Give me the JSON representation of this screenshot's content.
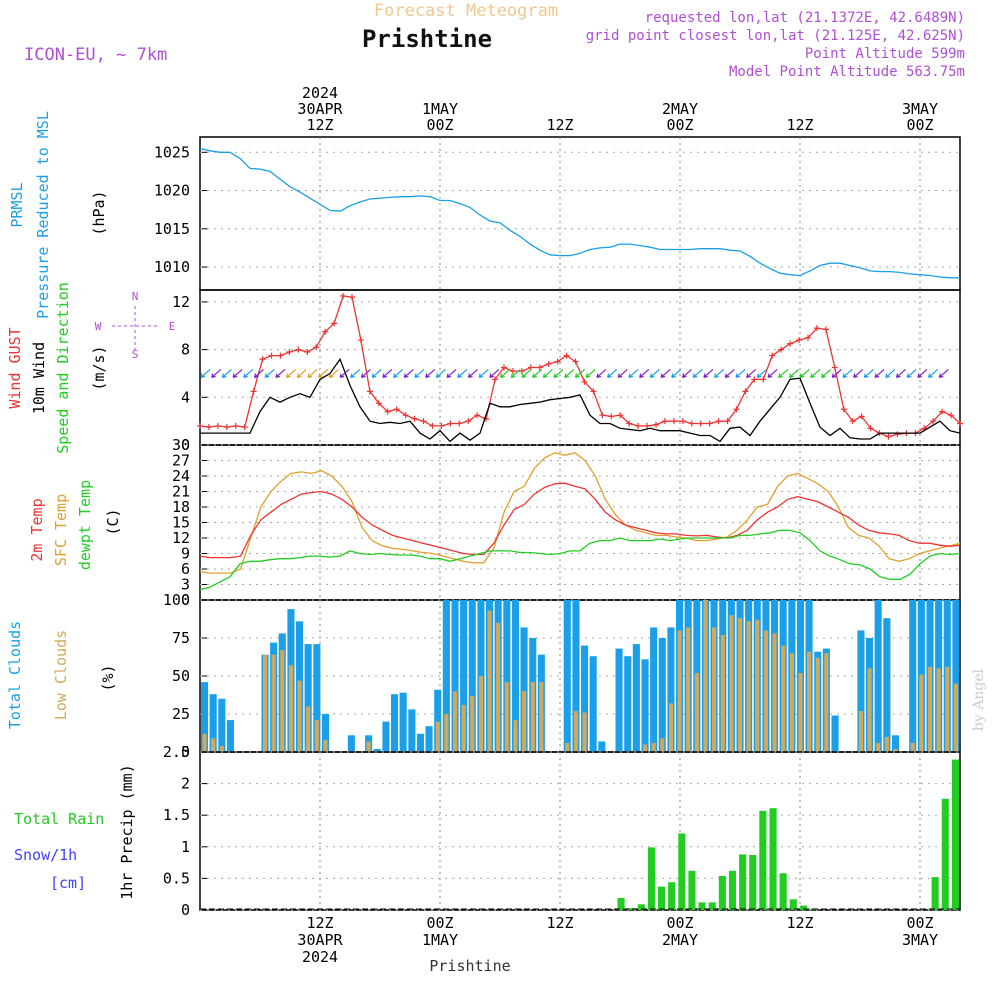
{
  "header": {
    "supertitle": "Forecast Meteogram",
    "title": "Prishtine",
    "model": "ICON-EU, ~ 7km",
    "info": [
      "requested lon,lat (21.1372E, 42.6489N)",
      "grid point closest lon,lat (21.125E, 42.625N)",
      "Point Altitude 599m",
      "Model Point Altitude 563.75m"
    ],
    "watermark": "by Angel",
    "footer": "Prishtine"
  },
  "colors": {
    "prmsl": "#1a9fe8",
    "gust": "#ee3333",
    "wind": "#000000",
    "wind_dir": "#22cc22",
    "temp": "#ee3333",
    "sfc_temp": "#e0a030",
    "dewpt": "#22cc22",
    "total_clouds": "#1a9fe8",
    "low_clouds": "#d2a85a",
    "rain": "#22cc22",
    "snow": "#4040ff",
    "info": "#b04fd6"
  },
  "time_axis": {
    "top_labels": [
      {
        "h": 12,
        "lines": [
          "2024",
          "30APR",
          "12Z"
        ]
      },
      {
        "h": 24,
        "lines": [
          "1MAY",
          "00Z"
        ]
      },
      {
        "h": 36,
        "lines": [
          "12Z"
        ]
      },
      {
        "h": 48,
        "lines": [
          "2MAY",
          "00Z"
        ]
      },
      {
        "h": 60,
        "lines": [
          "12Z"
        ]
      },
      {
        "h": 72,
        "lines": [
          "3MAY",
          "00Z"
        ]
      }
    ],
    "bottom_labels": [
      {
        "h": 12,
        "lines": [
          "12Z",
          "30APR",
          "2024"
        ]
      },
      {
        "h": 24,
        "lines": [
          "00Z",
          "1MAY"
        ]
      },
      {
        "h": 36,
        "lines": [
          "12Z"
        ]
      },
      {
        "h": 48,
        "lines": [
          "00Z",
          "2MAY"
        ]
      },
      {
        "h": 60,
        "lines": [
          "12Z"
        ]
      },
      {
        "h": 72,
        "lines": [
          "00Z",
          "3MAY"
        ]
      }
    ]
  },
  "chart_data": [
    {
      "type": "line",
      "panel": "pressure",
      "ylabels": [
        "PRMSL",
        "Pressure Reduced to MSL",
        "(hPa)"
      ],
      "ylim": [
        1007,
        1027
      ],
      "yticks": [
        1010,
        1015,
        1020,
        1025
      ],
      "series": [
        {
          "name": "PRMSL",
          "x": [
            0,
            1,
            2,
            3,
            4,
            5,
            6,
            7,
            8,
            9,
            10,
            11,
            12,
            13,
            14,
            15,
            16,
            17,
            18,
            19,
            20,
            21,
            22,
            23,
            24,
            25,
            26,
            27,
            28,
            29,
            30,
            31,
            32,
            33,
            34,
            35,
            36,
            37,
            38,
            39,
            40,
            41,
            42,
            43,
            44,
            45,
            46,
            47,
            48,
            49,
            50,
            51,
            52,
            53,
            54,
            55,
            56,
            57,
            58,
            59,
            60,
            61,
            62,
            63,
            64,
            65,
            66,
            67,
            68,
            69,
            70,
            71,
            72,
            73,
            74,
            75,
            76
          ],
          "values": [
            1025.5,
            1025.2,
            1025.0,
            1025.0,
            1024.2,
            1022.9,
            1022.8,
            1022.5,
            1021.5,
            1020.5,
            1019.8,
            1019.0,
            1018.2,
            1017.4,
            1017.3,
            1018.0,
            1018.5,
            1018.9,
            1019.0,
            1019.1,
            1019.2,
            1019.2,
            1019.3,
            1019.2,
            1018.7,
            1018.7,
            1018.3,
            1017.8,
            1016.8,
            1016.0,
            1015.8,
            1014.8,
            1014.0,
            1013.0,
            1012.2,
            1011.6,
            1011.5,
            1011.5,
            1011.8,
            1012.3,
            1012.5,
            1012.6,
            1013.0,
            1013.0,
            1012.8,
            1012.6,
            1012.3,
            1012.3,
            1012.3,
            1012.3,
            1012.4,
            1012.4,
            1012.4,
            1012.2,
            1012.1,
            1011.4,
            1010.5,
            1009.8,
            1009.2,
            1009.0,
            1008.9,
            1009.5,
            1010.2,
            1010.5,
            1010.5,
            1010.2,
            1009.9,
            1009.5,
            1009.4,
            1009.4,
            1009.3,
            1009.1,
            1009.0,
            1008.9,
            1008.7,
            1008.6,
            1008.6
          ]
        }
      ]
    },
    {
      "type": "line",
      "panel": "wind",
      "ylabels": [
        "Wind GUST",
        "10m Wind",
        "Speed and Direction",
        "(m/s)"
      ],
      "compass": [
        "N",
        "S",
        "W",
        "E"
      ],
      "ylim": [
        0,
        13
      ],
      "yticks": [
        0,
        4,
        8,
        12
      ],
      "series": [
        {
          "name": "Wind GUST",
          "values": [
            1.6,
            1.5,
            1.6,
            1.5,
            1.6,
            1.5,
            4.5,
            7.2,
            7.5,
            7.5,
            7.8,
            8.0,
            7.8,
            8.2,
            9.5,
            10.2,
            12.5,
            12.4,
            8.8,
            4.5,
            3.5,
            2.8,
            3.0,
            2.5,
            2.2,
            2.0,
            1.6,
            1.6,
            1.8,
            1.8,
            2.0,
            2.5,
            2.2,
            5.5,
            6.5,
            6.2,
            6.2,
            6.5,
            6.5,
            6.8,
            7.0,
            7.5,
            7.0,
            5.3,
            4.5,
            2.5,
            2.4,
            2.5,
            1.8,
            1.6,
            1.6,
            1.7,
            2.0,
            2.0,
            2.0,
            1.8,
            1.8,
            1.8,
            2.0,
            2.0,
            3.0,
            4.5,
            5.5,
            5.5,
            7.5,
            8.0,
            8.5,
            8.8,
            9.0,
            9.8,
            9.7,
            6.5,
            3.0,
            2.0,
            2.4,
            1.4,
            1.0,
            0.7,
            0.9,
            1.0,
            1.0,
            1.4,
            2.0,
            2.8,
            2.5,
            1.8
          ]
        },
        {
          "name": "10m Wind",
          "values": [
            1.0,
            1.0,
            1.0,
            1.0,
            1.0,
            1.0,
            2.8,
            4.0,
            3.6,
            4.0,
            4.3,
            4.0,
            5.5,
            6.0,
            7.2,
            5.0,
            3.2,
            2.0,
            1.8,
            1.9,
            1.8,
            2.0,
            1.0,
            0.5,
            1.2,
            0.3,
            1.0,
            0.4,
            1.0,
            3.5,
            3.2,
            3.2,
            3.4,
            3.5,
            3.6,
            3.8,
            3.9,
            4.0,
            4.2,
            2.5,
            1.8,
            1.8,
            1.4,
            1.3,
            1.2,
            1.4,
            1.2,
            1.2,
            1.2,
            1.0,
            0.8,
            0.8,
            0.3,
            1.4,
            1.5,
            0.8,
            2.0,
            3.0,
            4.0,
            5.5,
            5.6,
            3.5,
            1.5,
            0.8,
            1.4,
            0.6,
            0.5,
            0.5,
            1.0,
            1.0,
            1.0,
            1.0,
            1.0,
            1.5,
            2.0,
            1.2,
            1.0
          ]
        }
      ]
    },
    {
      "type": "line",
      "panel": "temperature",
      "ylabels": [
        "2m Temp",
        "SFC Temp",
        "dewpt Temp",
        "(C)"
      ],
      "ylim": [
        0,
        30
      ],
      "yticks": [
        0,
        3,
        6,
        9,
        12,
        15,
        18,
        21,
        24,
        27,
        30
      ],
      "series": [
        {
          "name": "2m Temp",
          "values": [
            8.5,
            8.2,
            8.2,
            8.2,
            8.5,
            12.5,
            15.5,
            17.0,
            18.5,
            19.5,
            20.5,
            20.8,
            21.0,
            20.5,
            19.5,
            18.0,
            16.0,
            14.5,
            13.5,
            12.5,
            12.0,
            11.5,
            11.0,
            10.5,
            10.0,
            9.5,
            9.0,
            8.8,
            8.8,
            11.0,
            14.5,
            17.5,
            18.5,
            20.5,
            21.8,
            22.5,
            22.6,
            22.0,
            21.5,
            19.5,
            17.0,
            15.5,
            14.5,
            14.0,
            13.5,
            13.0,
            12.8,
            12.8,
            12.5,
            12.4,
            12.5,
            12.2,
            12.0,
            12.5,
            13.5,
            15.5,
            17.0,
            18.0,
            19.5,
            20.0,
            19.5,
            19.0,
            18.0,
            17.0,
            16.0,
            14.5,
            13.5,
            13.0,
            12.8,
            12.5,
            11.5,
            11.0,
            11.0,
            10.6,
            10.4,
            10.6
          ]
        },
        {
          "name": "SFC Temp",
          "values": [
            5.5,
            5.2,
            5.2,
            5.2,
            6.0,
            12.0,
            18.0,
            21.0,
            23.0,
            24.5,
            24.8,
            24.5,
            25.0,
            24.0,
            22.0,
            19.0,
            14.0,
            11.5,
            10.5,
            10.0,
            9.8,
            9.5,
            9.2,
            9.0,
            8.5,
            8.0,
            7.5,
            7.2,
            7.2,
            10.0,
            17.0,
            21.0,
            22.0,
            25.5,
            27.5,
            28.5,
            28.0,
            28.5,
            27.0,
            24.0,
            19.5,
            16.5,
            14.5,
            13.5,
            13.0,
            12.5,
            12.5,
            12.2,
            12.0,
            11.5,
            11.5,
            11.8,
            12.2,
            13.5,
            15.5,
            18.0,
            18.5,
            22.0,
            24.0,
            24.5,
            23.5,
            22.5,
            21.0,
            18.0,
            14.0,
            12.5,
            12.0,
            10.5,
            8.0,
            7.5,
            8.0,
            9.0,
            9.5,
            10.0,
            10.5,
            11.0
          ]
        },
        {
          "name": "dewpt Temp",
          "values": [
            2.0,
            2.5,
            3.5,
            4.5,
            7.0,
            7.5,
            7.5,
            7.8,
            8.0,
            8.0,
            8.2,
            8.5,
            8.5,
            8.3,
            8.5,
            9.5,
            9.0,
            8.8,
            9.0,
            8.8,
            8.7,
            8.7,
            8.5,
            8.0,
            8.0,
            7.5,
            8.0,
            8.5,
            9.0,
            9.5,
            9.5,
            9.5,
            9.2,
            9.2,
            9.0,
            8.8,
            9.0,
            9.5,
            9.5,
            11.0,
            11.5,
            11.5,
            12.0,
            11.5,
            11.5,
            11.5,
            11.8,
            11.5,
            11.8,
            12.0,
            12.0,
            12.0,
            12.0,
            12.0,
            12.5,
            12.5,
            12.8,
            13.0,
            13.5,
            13.5,
            13.0,
            11.5,
            9.5,
            8.5,
            7.8,
            7.0,
            6.8,
            6.0,
            4.5,
            4.0,
            4.0,
            5.0,
            7.0,
            8.5,
            9.0,
            8.8,
            9.0
          ]
        }
      ]
    },
    {
      "type": "bar",
      "panel": "clouds",
      "ylabels": [
        "Total Clouds",
        "Low Clouds",
        "(%)"
      ],
      "ylim": [
        0,
        100
      ],
      "yticks": [
        0,
        25,
        50,
        75,
        100
      ],
      "series": [
        {
          "name": "Total Clouds",
          "values": [
            46,
            38,
            35,
            21,
            0,
            0,
            0,
            64,
            72,
            78,
            94,
            86,
            71,
            71,
            25,
            0,
            0,
            11,
            0,
            11,
            2,
            20,
            38,
            39,
            28,
            12,
            17,
            41,
            100,
            100,
            100,
            100,
            100,
            100,
            100,
            100,
            100,
            82,
            75,
            64,
            0,
            0,
            100,
            100,
            70,
            63,
            7,
            0,
            68,
            63,
            71,
            61,
            82,
            75,
            82,
            100,
            100,
            100,
            100,
            100,
            100,
            100,
            100,
            100,
            100,
            100,
            100,
            100,
            100,
            100,
            100,
            66,
            68,
            24,
            0,
            0,
            80,
            75,
            100,
            88,
            11,
            0,
            100,
            100,
            100,
            100,
            100,
            100
          ]
        },
        {
          "name": "Low Clouds",
          "values": [
            12,
            9,
            4,
            0,
            0,
            0,
            0,
            64,
            64,
            67,
            57,
            47,
            30,
            21,
            8,
            0,
            0,
            0,
            0,
            7,
            0,
            0,
            0,
            0,
            0,
            0,
            0,
            20,
            25,
            40,
            31,
            37,
            50,
            93,
            85,
            46,
            21,
            40,
            46,
            46,
            0,
            0,
            6,
            27,
            26,
            0,
            0,
            0,
            0,
            0,
            0,
            5,
            6,
            9,
            32,
            80,
            82,
            52,
            100,
            82,
            77,
            90,
            88,
            86,
            87,
            80,
            78,
            70,
            65,
            52,
            66,
            62,
            65,
            0,
            0,
            0,
            27,
            55,
            6,
            10,
            2,
            0,
            6,
            51,
            56,
            55,
            56,
            45
          ]
        }
      ]
    },
    {
      "type": "bar",
      "panel": "precipitation",
      "ylabels": [
        "Total Rain",
        "Snow/1h",
        "[cm]",
        "1hr Precip (mm)"
      ],
      "ylim": [
        0,
        2.5
      ],
      "yticks": [
        0,
        0.5,
        1,
        1.5,
        2,
        2.5
      ],
      "series": [
        {
          "name": "Total Rain",
          "values": [
            0,
            0,
            0,
            0,
            0,
            0,
            0,
            0,
            0,
            0,
            0,
            0,
            0,
            0,
            0,
            0,
            0,
            0,
            0,
            0,
            0,
            0,
            0,
            0,
            0,
            0,
            0,
            0,
            0,
            0,
            0,
            0,
            0,
            0,
            0,
            0,
            0,
            0,
            0,
            0,
            0,
            0.19,
            0.03,
            0.09,
            0.99,
            0.37,
            0.44,
            1.21,
            0.62,
            0.12,
            0.12,
            0.54,
            0.62,
            0.88,
            0.87,
            1.57,
            1.61,
            0.58,
            0.17,
            0.07,
            0.02,
            0,
            0,
            0,
            0,
            0,
            0,
            0,
            0,
            0,
            0,
            0,
            0.52,
            1.76,
            2.38
          ]
        }
      ]
    }
  ]
}
